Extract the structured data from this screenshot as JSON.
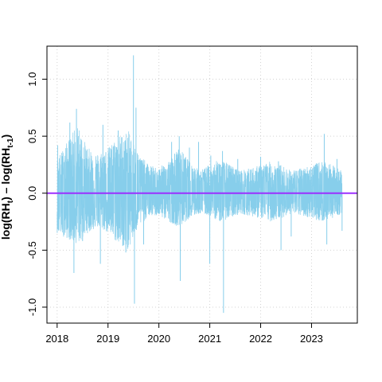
{
  "chart_data": {
    "type": "line",
    "title": "",
    "xlabel": "",
    "ylabel_parts": {
      "a": "log(RH",
      "a_sub": "t",
      "b": ") – log(RH",
      "b_sub": "t-1",
      "c": ")"
    },
    "xlim": [
      2017.8,
      2023.9
    ],
    "ylim": [
      -1.14,
      1.29
    ],
    "x_ticks": [
      {
        "value": 2018,
        "label": "2018"
      },
      {
        "value": 2019,
        "label": "2019"
      },
      {
        "value": 2020,
        "label": "2020"
      },
      {
        "value": 2021,
        "label": "2021"
      },
      {
        "value": 2022,
        "label": "2022"
      },
      {
        "value": 2023,
        "label": "2023"
      }
    ],
    "y_ticks": [
      {
        "value": 1.0,
        "label": "1.0"
      },
      {
        "value": 0.5,
        "label": "0.5"
      },
      {
        "value": 0.0,
        "label": "0.0"
      },
      {
        "value": -0.5,
        "label": "-0.5"
      },
      {
        "value": -1.0,
        "label": "-1.0"
      }
    ],
    "grid": true,
    "reference_line": {
      "y": 0.0,
      "color": "#9b30ff"
    },
    "series": [
      {
        "color": "#87ceeb",
        "envelope": [
          {
            "x": 2018.0,
            "upper": 0.3,
            "lower": -0.35
          },
          {
            "x": 2018.2,
            "upper": 0.45,
            "lower": -0.4
          },
          {
            "x": 2018.4,
            "upper": 0.6,
            "lower": -0.45
          },
          {
            "x": 2018.6,
            "upper": 0.4,
            "lower": -0.35
          },
          {
            "x": 2018.8,
            "upper": 0.35,
            "lower": -0.3
          },
          {
            "x": 2019.0,
            "upper": 0.4,
            "lower": -0.35
          },
          {
            "x": 2019.2,
            "upper": 0.5,
            "lower": -0.45
          },
          {
            "x": 2019.4,
            "upper": 0.55,
            "lower": -0.5
          },
          {
            "x": 2019.6,
            "upper": 0.35,
            "lower": -0.3
          },
          {
            "x": 2019.8,
            "upper": 0.25,
            "lower": -0.2
          },
          {
            "x": 2020.0,
            "upper": 0.22,
            "lower": -0.2
          },
          {
            "x": 2020.2,
            "upper": 0.3,
            "lower": -0.25
          },
          {
            "x": 2020.4,
            "upper": 0.4,
            "lower": -0.3
          },
          {
            "x": 2020.6,
            "upper": 0.28,
            "lower": -0.22
          },
          {
            "x": 2020.8,
            "upper": 0.2,
            "lower": -0.18
          },
          {
            "x": 2021.0,
            "upper": 0.25,
            "lower": -0.2
          },
          {
            "x": 2021.2,
            "upper": 0.3,
            "lower": -0.25
          },
          {
            "x": 2021.4,
            "upper": 0.25,
            "lower": -0.22
          },
          {
            "x": 2021.6,
            "upper": 0.2,
            "lower": -0.18
          },
          {
            "x": 2021.8,
            "upper": 0.22,
            "lower": -0.2
          },
          {
            "x": 2022.0,
            "upper": 0.25,
            "lower": -0.22
          },
          {
            "x": 2022.2,
            "upper": 0.28,
            "lower": -0.25
          },
          {
            "x": 2022.4,
            "upper": 0.25,
            "lower": -0.22
          },
          {
            "x": 2022.6,
            "upper": 0.2,
            "lower": -0.18
          },
          {
            "x": 2022.8,
            "upper": 0.22,
            "lower": -0.2
          },
          {
            "x": 2023.0,
            "upper": 0.25,
            "lower": -0.22
          },
          {
            "x": 2023.2,
            "upper": 0.28,
            "lower": -0.25
          },
          {
            "x": 2023.4,
            "upper": 0.25,
            "lower": -0.22
          },
          {
            "x": 2023.6,
            "upper": 0.2,
            "lower": -0.18
          }
        ],
        "spikes": [
          {
            "x": 2018.01,
            "y": 0.42
          },
          {
            "x": 2018.1,
            "y": -0.32
          },
          {
            "x": 2018.25,
            "y": 0.62
          },
          {
            "x": 2018.33,
            "y": -0.7
          },
          {
            "x": 2018.38,
            "y": 0.74
          },
          {
            "x": 2018.5,
            "y": -0.42
          },
          {
            "x": 2018.85,
            "y": -0.62
          },
          {
            "x": 2018.9,
            "y": 0.6
          },
          {
            "x": 2019.2,
            "y": 0.55
          },
          {
            "x": 2019.35,
            "y": -0.52
          },
          {
            "x": 2019.5,
            "y": 1.21
          },
          {
            "x": 2019.52,
            "y": -0.97
          },
          {
            "x": 2019.55,
            "y": 0.75
          },
          {
            "x": 2019.7,
            "y": -0.45
          },
          {
            "x": 2020.25,
            "y": 0.45
          },
          {
            "x": 2020.4,
            "y": 0.5
          },
          {
            "x": 2020.42,
            "y": -0.77
          },
          {
            "x": 2020.6,
            "y": 0.4
          },
          {
            "x": 2020.78,
            "y": 0.45
          },
          {
            "x": 2021.0,
            "y": -0.62
          },
          {
            "x": 2021.02,
            "y": 0.33
          },
          {
            "x": 2021.25,
            "y": 0.37
          },
          {
            "x": 2021.27,
            "y": -1.05
          },
          {
            "x": 2021.55,
            "y": 0.3
          },
          {
            "x": 2022.0,
            "y": 0.32
          },
          {
            "x": 2022.35,
            "y": 0.28
          },
          {
            "x": 2022.4,
            "y": -0.5
          },
          {
            "x": 2022.6,
            "y": -0.38
          },
          {
            "x": 2023.25,
            "y": 0.52
          },
          {
            "x": 2023.3,
            "y": -0.45
          },
          {
            "x": 2023.5,
            "y": 0.3
          },
          {
            "x": 2023.6,
            "y": -0.33
          }
        ]
      }
    ]
  }
}
